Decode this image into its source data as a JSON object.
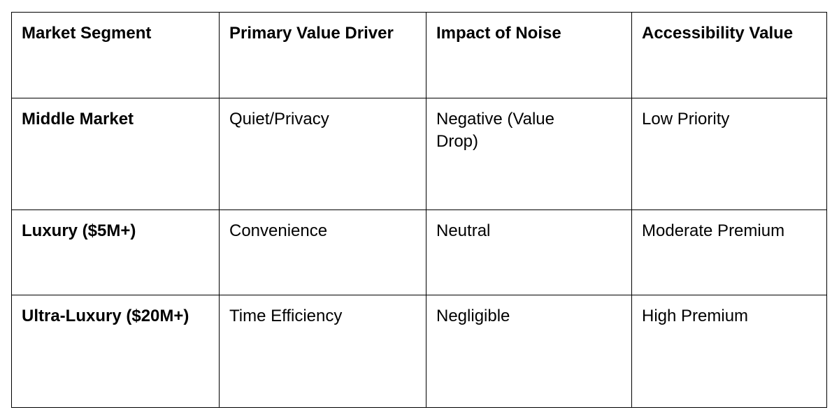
{
  "table": {
    "header": [
      "Market Segment",
      "Primary Value Driver",
      "Impact of Noise",
      "Accessibility Value"
    ],
    "rows": [
      [
        "Middle Market",
        "Quiet/Privacy",
        "Negative (Value Drop)",
        "Low Priority"
      ],
      [
        "Luxury ($5M+)",
        "Convenience",
        "Neutral",
        "Moderate Premium"
      ],
      [
        "Ultra-Luxury ($20M+)",
        "Time Efficiency",
        "Negligible",
        "High Premium"
      ]
    ]
  }
}
